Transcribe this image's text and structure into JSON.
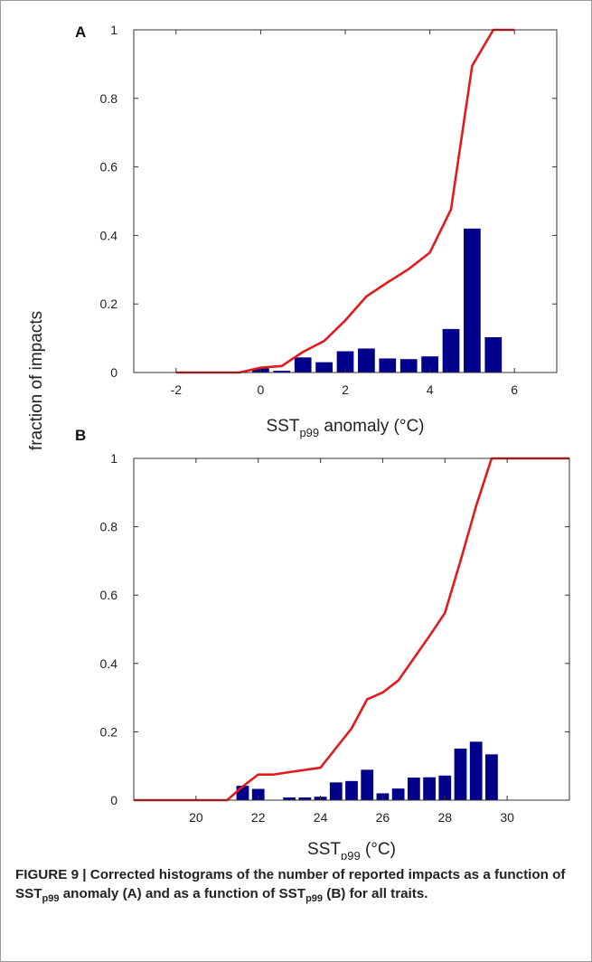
{
  "figure": {
    "shared_ylabel": "fraction of impacts",
    "caption": {
      "figure_number": "FIGURE 9 |",
      "parts": [
        {
          "text": " Corrected histograms of the number of reported impacts as a function of SST"
        },
        {
          "text": "p99",
          "sub": true
        },
        {
          "text": " anomaly (A) and as a function of SST"
        },
        {
          "text": "p99",
          "sub": true
        },
        {
          "text": " (B) for all traits."
        }
      ]
    }
  },
  "colors": {
    "bar": "#00008b",
    "line": "#e31a1c",
    "axis": "#333333"
  },
  "chart_data": [
    {
      "panel": "A",
      "type": "bar",
      "xlabel_main": "SST",
      "xlabel_sub": "p99",
      "xlabel_rest": " anomaly (°C)",
      "ylabel": "fraction of impacts",
      "xlim": [
        -3,
        7
      ],
      "ylim": [
        0,
        1
      ],
      "xticks": [
        -2,
        0,
        2,
        4,
        6
      ],
      "xtick_labels": [
        "-2",
        "0",
        "2",
        "4",
        "6"
      ],
      "yticks": [
        0,
        0.2,
        0.4,
        0.6,
        0.8,
        1
      ],
      "ytick_labels": [
        "0",
        "0.2",
        "0.4",
        "0.6",
        "0.8",
        "1"
      ],
      "bar_width": 0.4,
      "bars": {
        "x": [
          0,
          0.5,
          1,
          1.5,
          2,
          2.5,
          3,
          3.5,
          4,
          4.5,
          5,
          5.5
        ],
        "values": [
          0.012,
          0.005,
          0.044,
          0.03,
          0.062,
          0.07,
          0.041,
          0.039,
          0.047,
          0.127,
          0.42,
          0.103
        ]
      },
      "line": {
        "x": [
          -2,
          -0.5,
          0,
          0.5,
          1,
          1.5,
          2,
          2.5,
          3,
          3.5,
          4,
          4.5,
          5,
          5.5,
          6
        ],
        "y": [
          0,
          0,
          0.014,
          0.019,
          0.06,
          0.092,
          0.152,
          0.222,
          0.263,
          0.302,
          0.35,
          0.476,
          0.895,
          1,
          1
        ]
      }
    },
    {
      "panel": "B",
      "type": "bar",
      "xlabel_main": "SST",
      "xlabel_sub": "p99",
      "xlabel_rest": " (°C)",
      "ylabel": "fraction of impacts",
      "xlim": [
        18,
        32
      ],
      "ylim": [
        0,
        1
      ],
      "xticks": [
        20,
        22,
        24,
        26,
        28,
        30
      ],
      "xtick_labels": [
        "20",
        "22",
        "24",
        "26",
        "28",
        "30"
      ],
      "yticks": [
        0,
        0.2,
        0.4,
        0.6,
        0.8,
        1
      ],
      "ytick_labels": [
        "0",
        "0.2",
        "0.4",
        "0.6",
        "0.8",
        "1"
      ],
      "bar_width": 0.4,
      "bars": {
        "x": [
          21.5,
          22,
          23,
          23.5,
          24,
          24.5,
          25,
          25.5,
          26,
          26.5,
          27,
          27.5,
          28,
          28.5,
          29,
          29.5
        ],
        "values": [
          0.042,
          0.033,
          0.008,
          0.008,
          0.01,
          0.052,
          0.056,
          0.089,
          0.02,
          0.034,
          0.066,
          0.067,
          0.072,
          0.151,
          0.171,
          0.134
        ]
      },
      "line": {
        "x": [
          18,
          21,
          21.5,
          22,
          22.5,
          23,
          24,
          25,
          25.5,
          26,
          26.5,
          27,
          27.5,
          28,
          28.5,
          29,
          29.5,
          32
        ],
        "y": [
          0,
          0,
          0.04,
          0.075,
          0.075,
          0.082,
          0.095,
          0.21,
          0.295,
          0.315,
          0.35,
          0.415,
          0.48,
          0.548,
          0.7,
          0.86,
          1,
          1
        ]
      }
    }
  ]
}
